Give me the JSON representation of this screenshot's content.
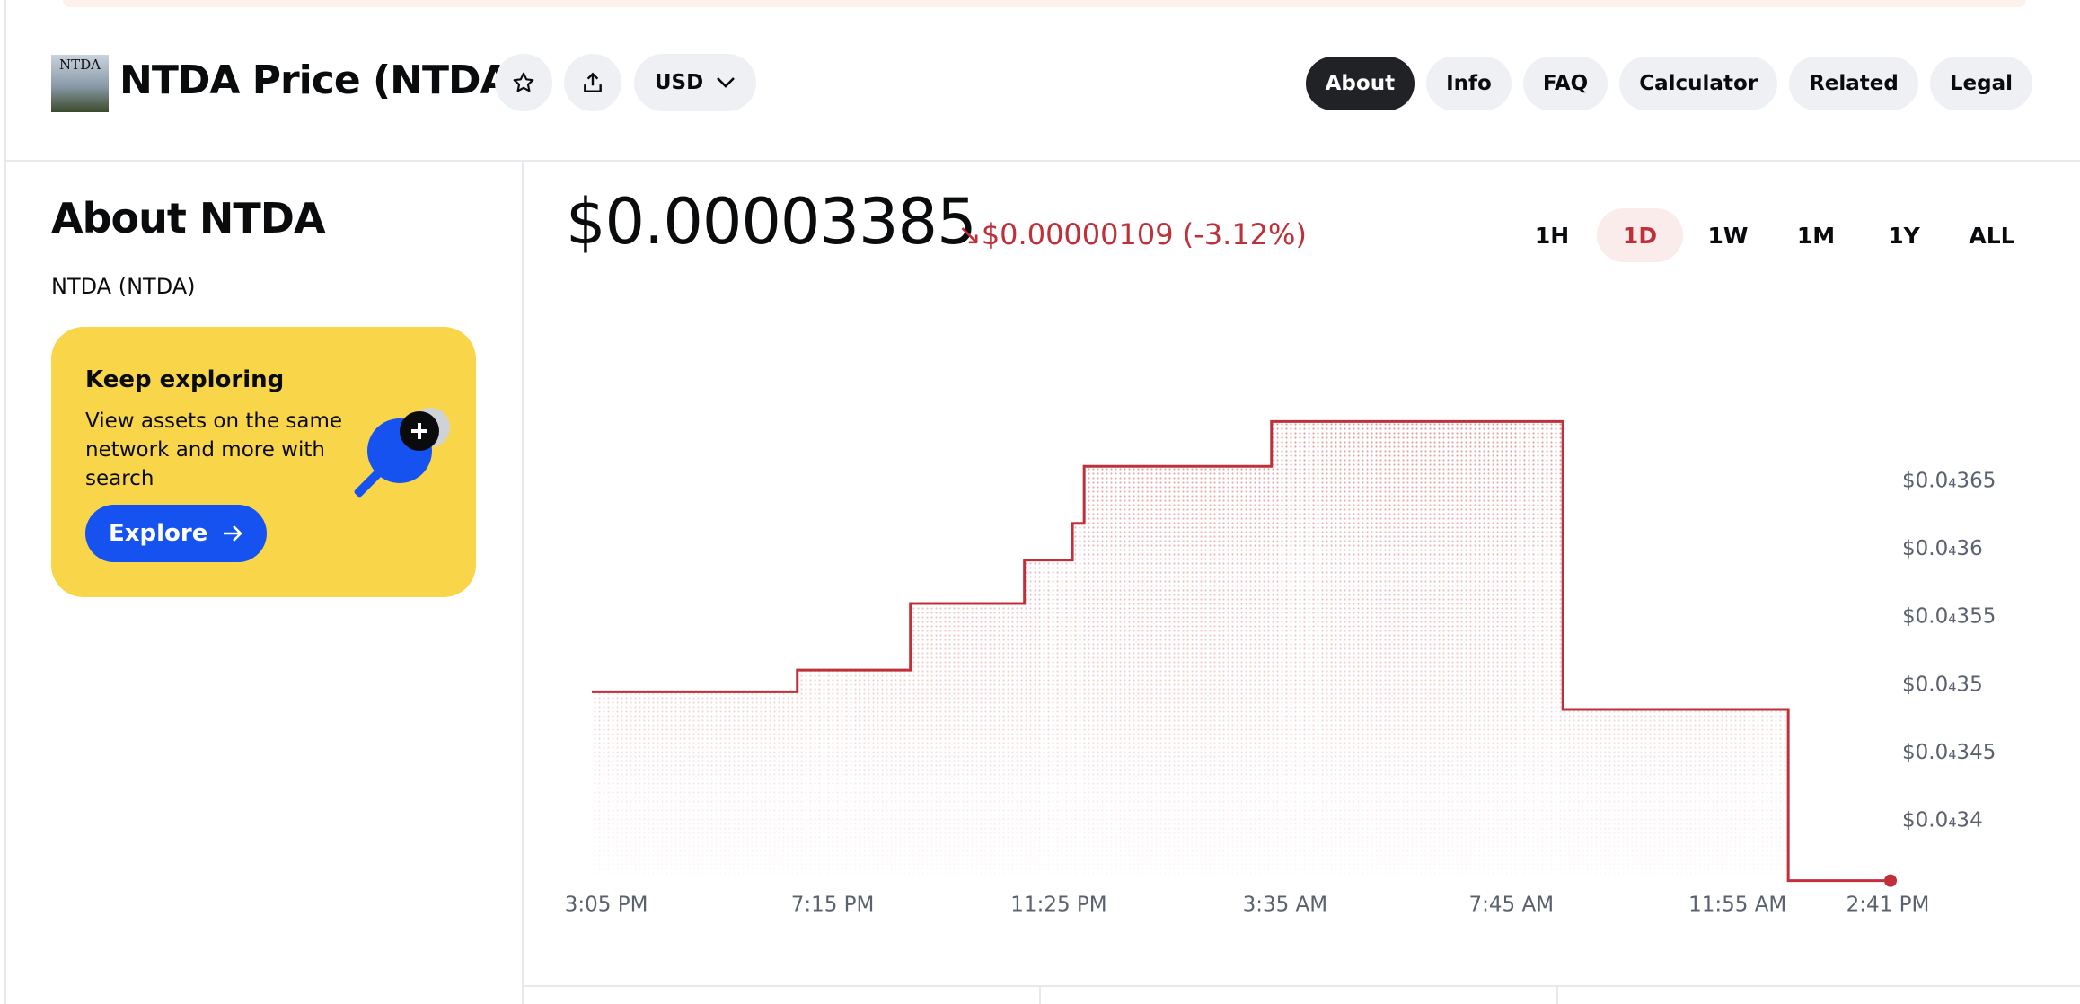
{
  "header": {
    "logo_text": "NTDA",
    "title": "NTDA Price (NTDA)",
    "currency": "USD",
    "nav": [
      "About",
      "Info",
      "FAQ",
      "Calculator",
      "Related",
      "Legal"
    ],
    "active_nav": 0
  },
  "about": {
    "title": "About NTDA",
    "subtitle": "NTDA (NTDA)",
    "card": {
      "title": "Keep exploring",
      "text_lines": [
        "View assets on the same",
        "network and more with",
        "search"
      ],
      "button": "Explore"
    }
  },
  "price": {
    "current": "$0.00003385",
    "change": "↘$0.00000109 (-3.12%)",
    "ranges": [
      "1H",
      "1D",
      "1W",
      "1M",
      "1Y",
      "ALL"
    ],
    "selected_range": 1
  },
  "chart_data": {
    "type": "line",
    "step": "after",
    "color": "#c0303a",
    "fill": true,
    "grid": false,
    "x": [
      "2:49 PM",
      "6:36 PM",
      "8:41 PM",
      "10:47 PM",
      "11:40 PM",
      "11:53 PM",
      "3:20 AM",
      "8:42 AM",
      "12:51 PM",
      "2:44 PM"
    ],
    "values": [
      3.495e-05,
      3.511e-05,
      3.56e-05,
      3.592e-05,
      3.619e-05,
      3.661e-05,
      3.694e-05,
      3.482e-05,
      3.356e-05,
      3.356e-05
    ],
    "xticks": [
      "3:05 PM",
      "7:15 PM",
      "11:25 PM",
      "3:35 AM",
      "7:45 AM",
      "11:55 AM",
      "2:41 PM"
    ],
    "ylim": [
      3.33e-05,
      3.72e-05
    ],
    "yticks": [
      {
        "value": 3.65e-05,
        "label": "$0.0₄365"
      },
      {
        "value": 3.6e-05,
        "label": "$0.0₄36"
      },
      {
        "value": 3.55e-05,
        "label": "$0.0₄355"
      },
      {
        "value": 3.5e-05,
        "label": "$0.0₄35"
      },
      {
        "value": 3.45e-05,
        "label": "$0.0₄345"
      },
      {
        "value": 3.4e-05,
        "label": "$0.0₄34"
      }
    ]
  }
}
